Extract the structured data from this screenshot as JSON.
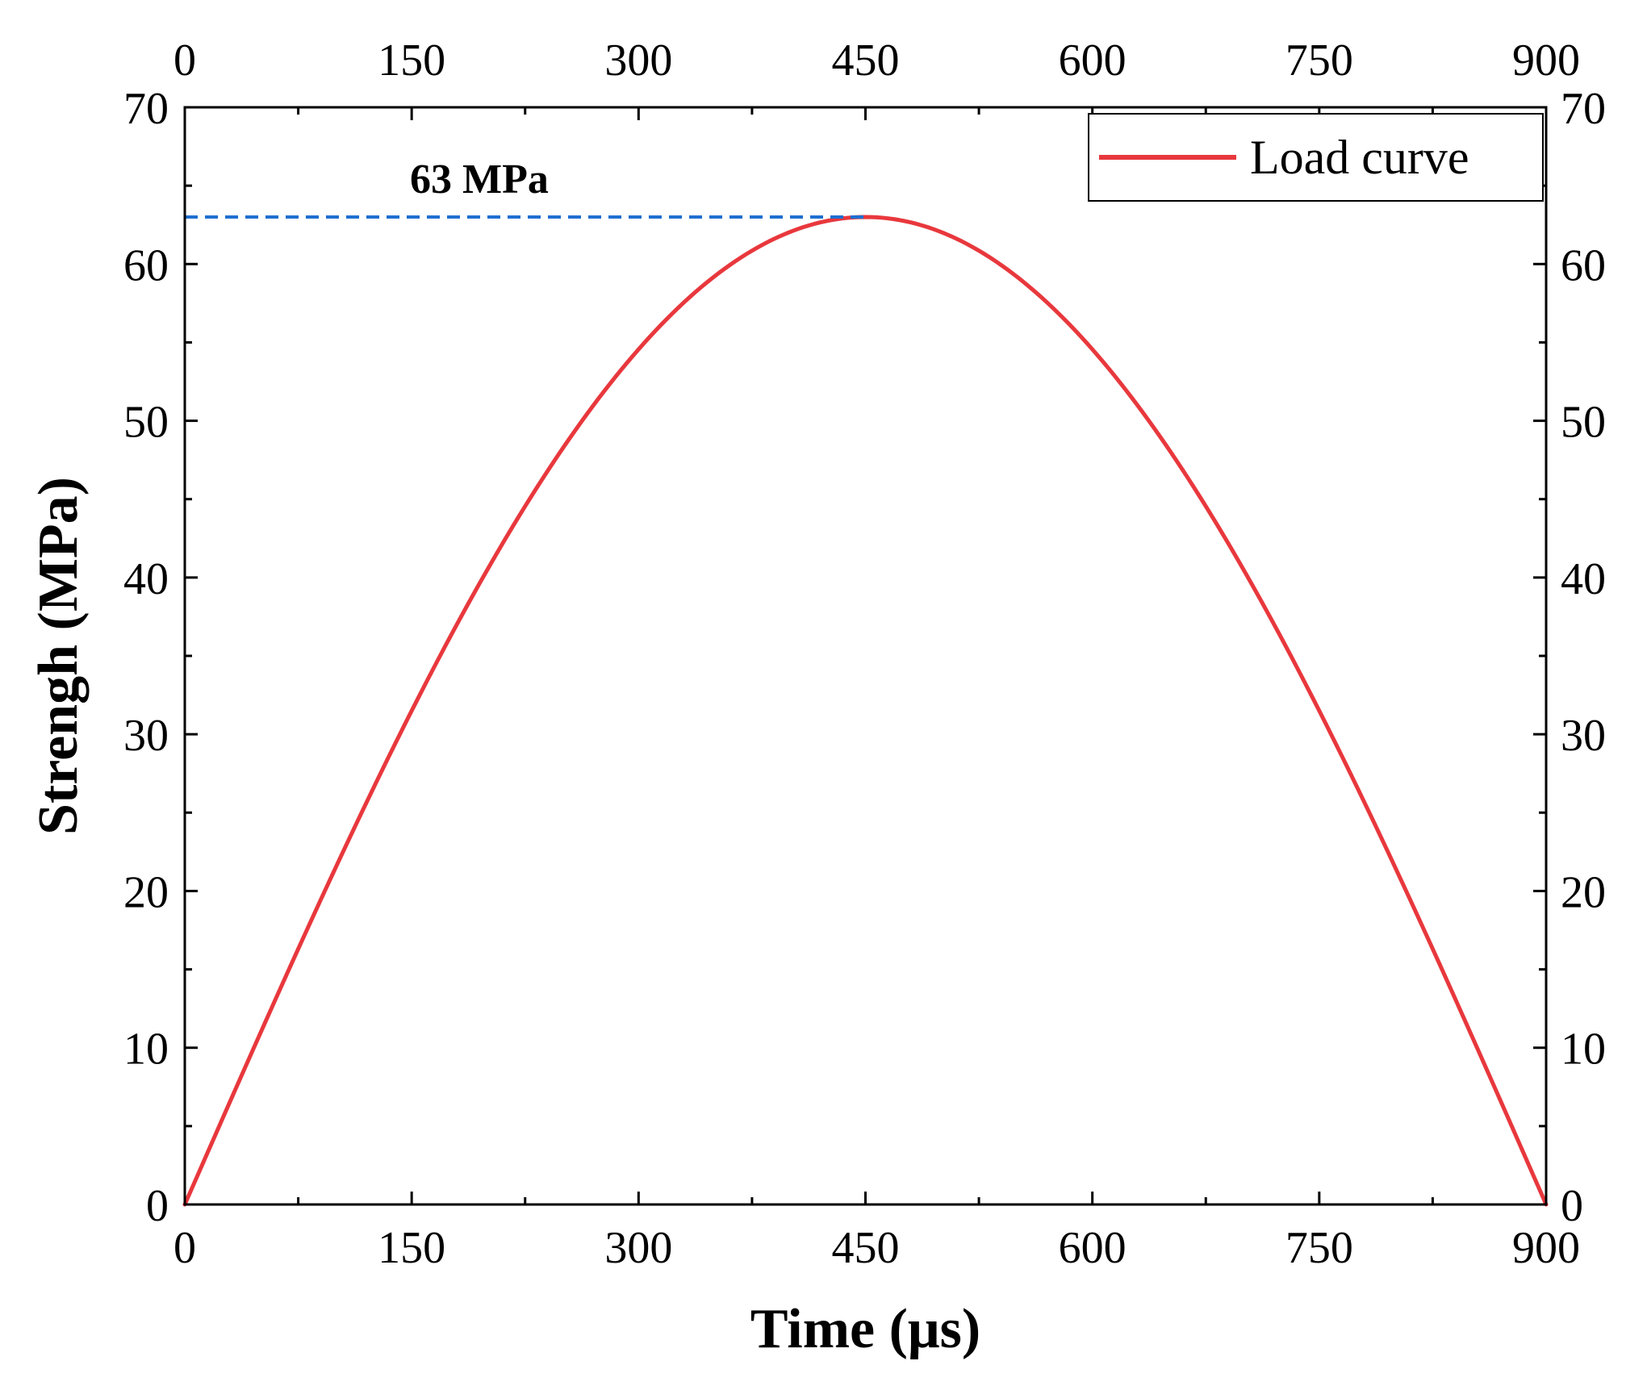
{
  "chart_data": {
    "type": "line",
    "title": "",
    "xlabel": "Time (μs)",
    "ylabel": "Strengh (MPa)",
    "xlim": [
      0,
      900
    ],
    "ylim": [
      0,
      70
    ],
    "x_ticks": [
      "0",
      "150",
      "300",
      "450",
      "600",
      "750",
      "900"
    ],
    "x_tick_values": [
      0,
      150,
      300,
      450,
      600,
      750,
      900
    ],
    "y_ticks": [
      "0",
      "10",
      "20",
      "30",
      "40",
      "50",
      "60",
      "70"
    ],
    "y_tick_values": [
      0,
      10,
      20,
      30,
      40,
      50,
      60,
      70
    ],
    "mirror_top_axis": true,
    "mirror_right_axis": true,
    "grid": false,
    "legend_position": "top-right",
    "series": [
      {
        "name": "Load curve",
        "color": "#e8383d",
        "shape": "half-sine",
        "peak": 63,
        "x": [
          0,
          75,
          150,
          225,
          300,
          375,
          450,
          525,
          600,
          675,
          750,
          825,
          900
        ],
        "y": [
          0,
          16.3,
          31.5,
          44.5,
          54.6,
          60.9,
          63,
          60.9,
          54.6,
          44.5,
          31.5,
          16.3,
          0
        ]
      }
    ],
    "annotations": [
      {
        "text": "63 MPa",
        "value": 63,
        "style": "dashed-horizontal-line",
        "color": "#1f6fd1",
        "x_start": 0,
        "x_end": 450
      }
    ]
  }
}
